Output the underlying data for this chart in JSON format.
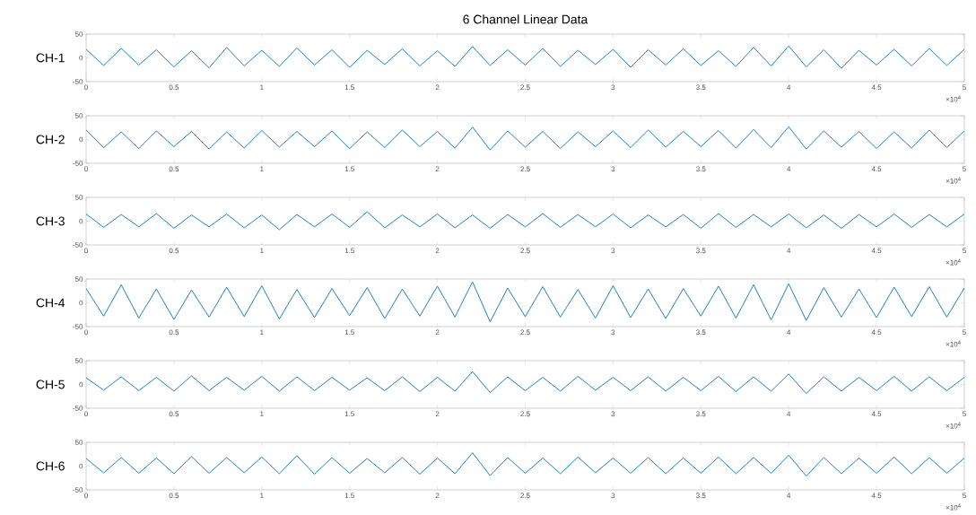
{
  "chart_data": [
    {
      "type": "line",
      "title": "6 Channel Linear Data",
      "ylabel": "CH-1",
      "color": "#0072bd",
      "xlim": [
        0,
        5
      ],
      "ylim": [
        -50,
        50
      ],
      "yticks": [
        -50,
        0,
        50
      ],
      "xticks": [
        0,
        0.5,
        1,
        1.5,
        2,
        2.5,
        3,
        3.5,
        4,
        4.5,
        5
      ],
      "annotations": [
        "×10$^{4}$"
      ],
      "x": [
        0,
        0.1,
        0.2,
        0.3,
        0.4,
        0.5,
        0.6,
        0.7,
        0.8,
        0.9,
        1,
        1.1,
        1.2,
        1.3,
        1.4,
        1.5,
        1.6,
        1.7,
        1.8,
        1.9,
        2,
        2.1,
        2.2,
        2.3,
        2.4,
        2.5,
        2.6,
        2.7,
        2.8,
        2.9,
        3,
        3.1,
        3.2,
        3.3,
        3.4,
        3.5,
        3.6,
        3.7,
        3.8,
        3.9,
        4,
        4.1,
        4.2,
        4.3,
        4.4,
        4.5,
        4.6,
        4.7,
        4.8,
        4.9,
        5
      ],
      "values": [
        18,
        -16,
        20,
        -15,
        17,
        -19,
        15,
        -21,
        22,
        -17,
        16,
        -18,
        21,
        -15,
        17,
        -20,
        16,
        -14,
        19,
        -17,
        15,
        -18,
        24,
        -16,
        17,
        -15,
        20,
        -18,
        16,
        -14,
        18,
        -20,
        17,
        -15,
        19,
        -16,
        15,
        -18,
        22,
        -17,
        25,
        -19,
        17,
        -22,
        16,
        -15,
        18,
        -17,
        20,
        -16,
        18
      ]
    },
    {
      "type": "line",
      "ylabel": "CH-2",
      "color": "#0072bd",
      "xlim": [
        0,
        5
      ],
      "ylim": [
        -50,
        50
      ],
      "yticks": [
        -50,
        0,
        50
      ],
      "xticks": [
        0,
        0.5,
        1,
        1.5,
        2,
        2.5,
        3,
        3.5,
        4,
        4.5,
        5
      ],
      "annotations": [
        "×10$^{4}$"
      ],
      "x": [
        0,
        0.1,
        0.2,
        0.3,
        0.4,
        0.5,
        0.6,
        0.7,
        0.8,
        0.9,
        1,
        1.1,
        1.2,
        1.3,
        1.4,
        1.5,
        1.6,
        1.7,
        1.8,
        1.9,
        2,
        2.1,
        2.2,
        2.3,
        2.4,
        2.5,
        2.6,
        2.7,
        2.8,
        2.9,
        3,
        3.1,
        3.2,
        3.3,
        3.4,
        3.5,
        3.6,
        3.7,
        3.8,
        3.9,
        4,
        4.1,
        4.2,
        4.3,
        4.4,
        4.5,
        4.6,
        4.7,
        4.8,
        4.9,
        5
      ],
      "values": [
        20,
        -17,
        16,
        -19,
        18,
        -15,
        17,
        -20,
        16,
        -18,
        19,
        -16,
        17,
        -15,
        18,
        -19,
        16,
        -17,
        20,
        -15,
        17,
        -18,
        26,
        -22,
        18,
        -16,
        17,
        -19,
        16,
        -15,
        18,
        -17,
        20,
        -16,
        17,
        -15,
        19,
        -18,
        21,
        -17,
        27,
        -20,
        18,
        -16,
        17,
        -19,
        16,
        -18,
        20,
        -17,
        18
      ]
    },
    {
      "type": "line",
      "ylabel": "CH-3",
      "color": "#0072bd",
      "xlim": [
        0,
        5
      ],
      "ylim": [
        -50,
        50
      ],
      "yticks": [
        -50,
        0,
        50
      ],
      "xticks": [
        0,
        0.5,
        1,
        1.5,
        2,
        2.5,
        3,
        3.5,
        4,
        4.5,
        5
      ],
      "annotations": [
        "×10$^{4}$"
      ],
      "x": [
        0,
        0.1,
        0.2,
        0.3,
        0.4,
        0.5,
        0.6,
        0.7,
        0.8,
        0.9,
        1,
        1.1,
        1.2,
        1.3,
        1.4,
        1.5,
        1.6,
        1.7,
        1.8,
        1.9,
        2,
        2.1,
        2.2,
        2.3,
        2.4,
        2.5,
        2.6,
        2.7,
        2.8,
        2.9,
        3,
        3.1,
        3.2,
        3.3,
        3.4,
        3.5,
        3.6,
        3.7,
        3.8,
        3.9,
        4,
        4.1,
        4.2,
        4.3,
        4.4,
        4.5,
        4.6,
        4.7,
        4.8,
        4.9,
        5
      ],
      "values": [
        15,
        -13,
        14,
        -12,
        16,
        -15,
        13,
        -12,
        15,
        -14,
        13,
        -18,
        14,
        -12,
        15,
        -13,
        20,
        -14,
        13,
        -12,
        15,
        -14,
        13,
        -15,
        14,
        -12,
        16,
        -13,
        14,
        -12,
        15,
        -14,
        13,
        -12,
        14,
        -15,
        16,
        -13,
        14,
        -12,
        15,
        -14,
        13,
        -15,
        14,
        -12,
        15,
        -13,
        14,
        -12,
        15
      ]
    },
    {
      "type": "line",
      "ylabel": "CH-4",
      "color": "#0072bd",
      "xlim": [
        0,
        5
      ],
      "ylim": [
        -50,
        50
      ],
      "yticks": [
        -50,
        0,
        50
      ],
      "xticks": [
        0,
        0.5,
        1,
        1.5,
        2,
        2.5,
        3,
        3.5,
        4,
        4.5,
        5
      ],
      "annotations": [
        "×10$^{4}$"
      ],
      "x": [
        0,
        0.1,
        0.2,
        0.3,
        0.4,
        0.5,
        0.6,
        0.7,
        0.8,
        0.9,
        1,
        1.1,
        1.2,
        1.3,
        1.4,
        1.5,
        1.6,
        1.7,
        1.8,
        1.9,
        2,
        2.1,
        2.2,
        2.3,
        2.4,
        2.5,
        2.6,
        2.7,
        2.8,
        2.9,
        3,
        3.1,
        3.2,
        3.3,
        3.4,
        3.5,
        3.6,
        3.7,
        3.8,
        3.9,
        4,
        4.1,
        4.2,
        4.3,
        4.4,
        4.5,
        4.6,
        4.7,
        4.8,
        4.9,
        5
      ],
      "values": [
        30,
        -28,
        38,
        -32,
        29,
        -35,
        27,
        -30,
        33,
        -29,
        36,
        -34,
        28,
        -31,
        30,
        -27,
        32,
        -33,
        29,
        -28,
        35,
        -30,
        44,
        -40,
        31,
        -29,
        34,
        -30,
        28,
        -32,
        36,
        -31,
        29,
        -33,
        30,
        -28,
        35,
        -32,
        38,
        -36,
        40,
        -37,
        32,
        -30,
        29,
        -31,
        33,
        -29,
        34,
        -30,
        31
      ]
    },
    {
      "type": "line",
      "ylabel": "CH-5",
      "color": "#0072bd",
      "xlim": [
        0,
        5
      ],
      "ylim": [
        -50,
        50
      ],
      "yticks": [
        -50,
        0,
        50
      ],
      "xticks": [
        0,
        0.5,
        1,
        1.5,
        2,
        2.5,
        3,
        3.5,
        4,
        4.5,
        5
      ],
      "annotations": [
        "×10$^{4}$"
      ],
      "x": [
        0,
        0.1,
        0.2,
        0.3,
        0.4,
        0.5,
        0.6,
        0.7,
        0.8,
        0.9,
        1,
        1.1,
        1.2,
        1.3,
        1.4,
        1.5,
        1.6,
        1.7,
        1.8,
        1.9,
        2,
        2.1,
        2.2,
        2.3,
        2.4,
        2.5,
        2.6,
        2.7,
        2.8,
        2.9,
        3,
        3.1,
        3.2,
        3.3,
        3.4,
        3.5,
        3.6,
        3.7,
        3.8,
        3.9,
        4,
        4.1,
        4.2,
        4.3,
        4.4,
        4.5,
        4.6,
        4.7,
        4.8,
        4.9,
        5
      ],
      "values": [
        14,
        -12,
        16,
        -13,
        15,
        -14,
        18,
        -13,
        15,
        -12,
        17,
        -14,
        16,
        -13,
        15,
        -12,
        14,
        -13,
        16,
        -15,
        15,
        -14,
        27,
        -17,
        16,
        -13,
        15,
        -14,
        17,
        -12,
        15,
        -13,
        16,
        -14,
        15,
        -13,
        17,
        -15,
        16,
        -14,
        22,
        -19,
        16,
        -14,
        15,
        -13,
        17,
        -14,
        16,
        -13,
        15
      ]
    },
    {
      "type": "line",
      "ylabel": "CH-6",
      "color": "#0072bd",
      "xlim": [
        0,
        5
      ],
      "ylim": [
        -50,
        50
      ],
      "yticks": [
        -50,
        0,
        50
      ],
      "xticks": [
        0,
        0.5,
        1,
        1.5,
        2,
        2.5,
        3,
        3.5,
        4,
        4.5,
        5
      ],
      "annotations": [
        "×10$^{4}$"
      ],
      "x": [
        0,
        0.1,
        0.2,
        0.3,
        0.4,
        0.5,
        0.6,
        0.7,
        0.8,
        0.9,
        1,
        1.1,
        1.2,
        1.3,
        1.4,
        1.5,
        1.6,
        1.7,
        1.8,
        1.9,
        2,
        2.1,
        2.2,
        2.3,
        2.4,
        2.5,
        2.6,
        2.7,
        2.8,
        2.9,
        3,
        3.1,
        3.2,
        3.3,
        3.4,
        3.5,
        3.6,
        3.7,
        3.8,
        3.9,
        4,
        4.1,
        4.2,
        4.3,
        4.4,
        4.5,
        4.6,
        4.7,
        4.8,
        4.9,
        5
      ],
      "values": [
        16,
        -14,
        18,
        -15,
        17,
        -16,
        20,
        -15,
        18,
        -14,
        19,
        -16,
        22,
        -17,
        18,
        -15,
        16,
        -14,
        18,
        -17,
        17,
        -16,
        28,
        -20,
        18,
        -15,
        17,
        -16,
        19,
        -14,
        17,
        -15,
        18,
        -16,
        17,
        -15,
        19,
        -16,
        18,
        -15,
        23,
        -21,
        18,
        -16,
        17,
        -15,
        19,
        -16,
        18,
        -15,
        17
      ]
    }
  ]
}
